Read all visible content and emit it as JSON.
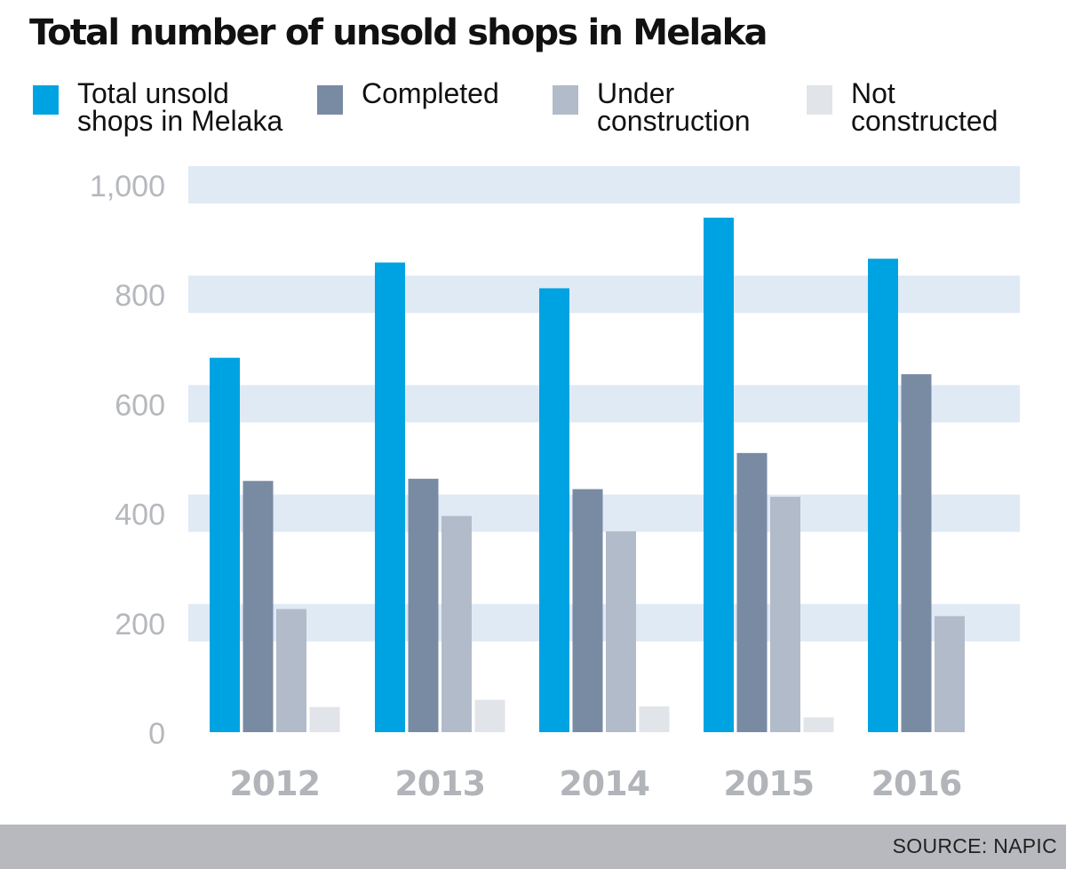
{
  "title": "Total number of unsold shops in Melaka",
  "legend": [
    {
      "label": "Total unsold\nshops in Melaka",
      "color": "#00a3e2"
    },
    {
      "label": "Completed",
      "color": "#788ba3"
    },
    {
      "label": "Under\nconstruction",
      "color": "#b2bbca"
    },
    {
      "label": "Not\nconstructed",
      "color": "#e1e4e9"
    }
  ],
  "source": "SOURCE: NAPIC",
  "chart_data": {
    "type": "bar",
    "categories": [
      "2012",
      "2013",
      "2014",
      "2015",
      "2016"
    ],
    "series": [
      {
        "name": "Total unsold shops in Melaka",
        "color": "#00a3e2",
        "values": [
          684,
          858,
          811,
          940,
          865
        ]
      },
      {
        "name": "Completed",
        "color": "#788ba3",
        "values": [
          459,
          463,
          444,
          510,
          654
        ]
      },
      {
        "name": "Under construction",
        "color": "#b2bbca",
        "values": [
          225,
          395,
          367,
          430,
          212
        ]
      },
      {
        "name": "Not constructed",
        "color": "#e1e4e9",
        "values": [
          46,
          59,
          47,
          27,
          null
        ]
      }
    ],
    "yticks": [
      0,
      200,
      400,
      600,
      800,
      1000
    ],
    "ytick_labels": [
      "0",
      "200",
      "400",
      "600",
      "800",
      "1,000"
    ],
    "ylim": [
      0,
      1000
    ],
    "grid": "alternating horizontal bands",
    "band_color": "#dfeaf5",
    "xlabel": "",
    "ylabel": ""
  }
}
